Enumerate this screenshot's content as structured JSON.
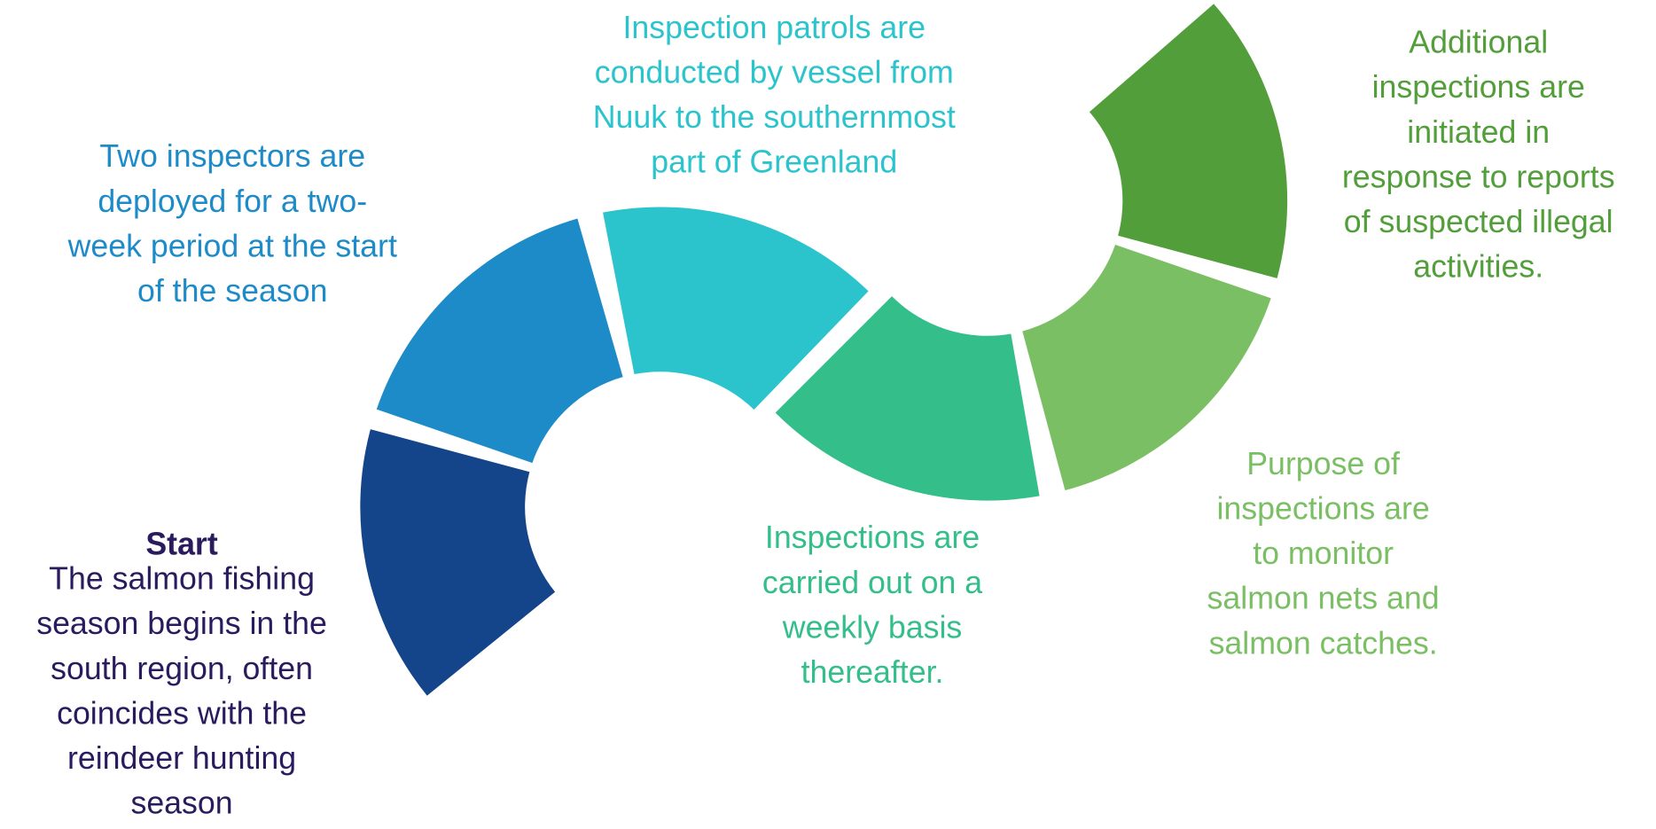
{
  "steps": [
    {
      "heading": "Start",
      "color": "#14458a",
      "text_color": "#2a1a5e",
      "lines": [
        "The salmon fishing",
        "season begins in the",
        "south region, often",
        "coincides with the",
        "reindeer hunting",
        "season"
      ]
    },
    {
      "color": "#1e8bc9",
      "text_color": "#1e8bc9",
      "lines": [
        "Two inspectors are",
        "deployed for a two-",
        "week period at the start",
        "of the season"
      ]
    },
    {
      "color": "#2cc4cc",
      "text_color": "#2cc4cc",
      "lines": [
        "Inspection patrols are",
        "conducted by vessel from",
        "Nuuk to the southernmost",
        "part of Greenland"
      ]
    },
    {
      "color": "#33be8a",
      "text_color": "#33be8a",
      "lines": [
        "Inspections are",
        "carried out on a",
        "weekly basis",
        "thereafter."
      ]
    },
    {
      "color": "#7bbf64",
      "text_color": "#7bbf64",
      "lines": [
        "Purpose of",
        "inspections are",
        "to monitor",
        "salmon nets and",
        "salmon catches."
      ]
    },
    {
      "color": "#529e3a",
      "text_color": "#529e3a",
      "lines": [
        "Additional",
        "inspections are",
        "initiated in",
        "response to reports",
        "of suspected illegal",
        "activities."
      ]
    }
  ]
}
